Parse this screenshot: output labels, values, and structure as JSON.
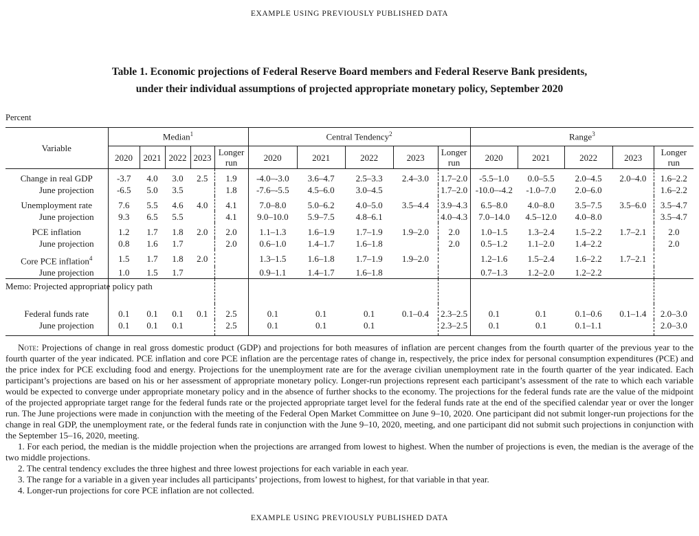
{
  "page": {
    "running_header": "EXAMPLE USING PREVIOUSLY PUBLISHED DATA",
    "running_footer": "EXAMPLE USING PREVIOUSLY PUBLISHED DATA",
    "title_line1": "Table 1. Economic projections of Federal Reserve Board members and Federal Reserve Bank presidents,",
    "title_line2": "under their individual assumptions of projected appropriate monetary policy, September 2020",
    "unit_label": "Percent"
  },
  "table": {
    "header": {
      "variable": "Variable",
      "sections": [
        {
          "label": "Median",
          "sup": "1",
          "years": [
            "2020",
            "2021",
            "2022",
            "2023",
            "Longer run"
          ]
        },
        {
          "label": "Central Tendency",
          "sup": "2",
          "years": [
            "2020",
            "2021",
            "2022",
            "2023",
            "Longer run"
          ]
        },
        {
          "label": "Range",
          "sup": "3",
          "years": [
            "2020",
            "2021",
            "2022",
            "2023",
            "Longer run"
          ]
        }
      ]
    },
    "rows": [
      {
        "label": "Change in real GDP",
        "group_start": true,
        "median": [
          "-3.7",
          "4.0",
          "3.0",
          "2.5",
          "1.9"
        ],
        "central": [
          "-4.0–-3.0",
          "3.6–4.7",
          "2.5–3.3",
          "2.4–3.0",
          "1.7–2.0"
        ],
        "range": [
          "-5.5–1.0",
          "0.0–5.5",
          "2.0–4.5",
          "2.0–4.0",
          "1.6–2.2"
        ]
      },
      {
        "label": "June projection",
        "indent": true,
        "median": [
          "-6.5",
          "5.0",
          "3.5",
          "",
          "1.8"
        ],
        "central": [
          "-7.6–-5.5",
          "4.5–6.0",
          "3.0–4.5",
          "",
          "1.7–2.0"
        ],
        "range": [
          "-10.0–-4.2",
          "-1.0–7.0",
          "2.0–6.0",
          "",
          "1.6–2.2"
        ]
      },
      {
        "label": "Unemployment rate",
        "group_start": true,
        "median": [
          "7.6",
          "5.5",
          "4.6",
          "4.0",
          "4.1"
        ],
        "central": [
          "7.0–8.0",
          "5.0–6.2",
          "4.0–5.0",
          "3.5–4.4",
          "3.9–4.3"
        ],
        "range": [
          "6.5–8.0",
          "4.0–8.0",
          "3.5–7.5",
          "3.5–6.0",
          "3.5–4.7"
        ]
      },
      {
        "label": "June projection",
        "indent": true,
        "median": [
          "9.3",
          "6.5",
          "5.5",
          "",
          "4.1"
        ],
        "central": [
          "9.0–10.0",
          "5.9–7.5",
          "4.8–6.1",
          "",
          "4.0–4.3"
        ],
        "range": [
          "7.0–14.0",
          "4.5–12.0",
          "4.0–8.0",
          "",
          "3.5–4.7"
        ]
      },
      {
        "label": "PCE inflation",
        "group_start": true,
        "median": [
          "1.2",
          "1.7",
          "1.8",
          "2.0",
          "2.0"
        ],
        "central": [
          "1.1–1.3",
          "1.6–1.9",
          "1.7–1.9",
          "1.9–2.0",
          "2.0"
        ],
        "range": [
          "1.0–1.5",
          "1.3–2.4",
          "1.5–2.2",
          "1.7–2.1",
          "2.0"
        ]
      },
      {
        "label": "June projection",
        "indent": true,
        "median": [
          "0.8",
          "1.6",
          "1.7",
          "",
          "2.0"
        ],
        "central": [
          "0.6–1.0",
          "1.4–1.7",
          "1.6–1.8",
          "",
          "2.0"
        ],
        "range": [
          "0.5–1.2",
          "1.1–2.0",
          "1.4–2.2",
          "",
          "2.0"
        ]
      },
      {
        "label": "Core PCE inflation",
        "sup": "4",
        "group_start": true,
        "median": [
          "1.5",
          "1.7",
          "1.8",
          "2.0",
          ""
        ],
        "central": [
          "1.3–1.5",
          "1.6–1.8",
          "1.7–1.9",
          "1.9–2.0",
          ""
        ],
        "range": [
          "1.2–1.6",
          "1.5–2.4",
          "1.6–2.2",
          "1.7–2.1",
          ""
        ]
      },
      {
        "label": "June projection",
        "indent": true,
        "median": [
          "1.0",
          "1.5",
          "1.7",
          "",
          ""
        ],
        "central": [
          "0.9–1.1",
          "1.4–1.7",
          "1.6–1.8",
          "",
          ""
        ],
        "range": [
          "0.7–1.3",
          "1.2–2.0",
          "1.2–2.2",
          "",
          ""
        ]
      },
      {
        "label": "Memo: Projected appropriate policy path",
        "memo": true,
        "median": [
          "",
          "",
          "",
          "",
          ""
        ],
        "central": [
          "",
          "",
          "",
          "",
          ""
        ],
        "range": [
          "",
          "",
          "",
          "",
          ""
        ]
      },
      {
        "label": "Federal funds rate",
        "ffr": true,
        "median": [
          "0.1",
          "0.1",
          "0.1",
          "0.1",
          "2.5"
        ],
        "central": [
          "0.1",
          "0.1",
          "0.1",
          "0.1–0.4",
          "2.3–2.5"
        ],
        "range": [
          "0.1",
          "0.1",
          "0.1–0.6",
          "0.1–1.4",
          "2.0–3.0"
        ]
      },
      {
        "label": "June projection",
        "indent": true,
        "last": true,
        "median": [
          "0.1",
          "0.1",
          "0.1",
          "",
          "2.5"
        ],
        "central": [
          "0.1",
          "0.1",
          "0.1",
          "",
          "2.3–2.5"
        ],
        "range": [
          "0.1",
          "0.1",
          "0.1–1.1",
          "",
          "2.0–3.0"
        ]
      }
    ]
  },
  "notes": {
    "note_label": "Note:",
    "note_text": " Projections of change in real gross domestic product (GDP) and projections for both measures of inflation are percent changes from the fourth quarter of the previous year to the fourth quarter of the year indicated. PCE inflation and core PCE inflation are the percentage rates of change in, respectively, the price index for personal consumption expenditures (PCE) and the price index for PCE excluding food and energy. Projections for the unemployment rate are for the average civilian unemployment rate in the fourth quarter of the year indicated. Each participant’s projections are based on his or her assessment of appropriate monetary policy. Longer-run projections represent each participant’s assessment of the rate to which each variable would be expected to converge under appropriate monetary policy and in the absence of further shocks to the economy. The projections for the federal funds rate are the value of the midpoint of the projected appropriate target range for the federal funds rate or the projected appropriate target level for the federal funds rate at the end of the specified calendar year or over the longer run. The June projections were made in conjunction with the meeting of the Federal Open Market Committee on June 9–10, 2020. One participant did not submit longer-run projections for the change in real GDP, the unemployment rate, or the federal funds rate in conjunction with the June 9–10, 2020, meeting, and one participant did not submit such projections in conjunction with the September 15–16, 2020, meeting.",
    "footnotes": [
      "1. For each period, the median is the middle projection when the projections are arranged from lowest to highest. When the number of projections is even, the median is the average of the two middle projections.",
      "2. The central tendency excludes the three highest and three lowest projections for each variable in each year.",
      "3. The range for a variable in a given year includes all participants’ projections, from lowest to highest, for that variable in that year.",
      "4. Longer-run projections for core PCE inflation are not collected."
    ]
  }
}
